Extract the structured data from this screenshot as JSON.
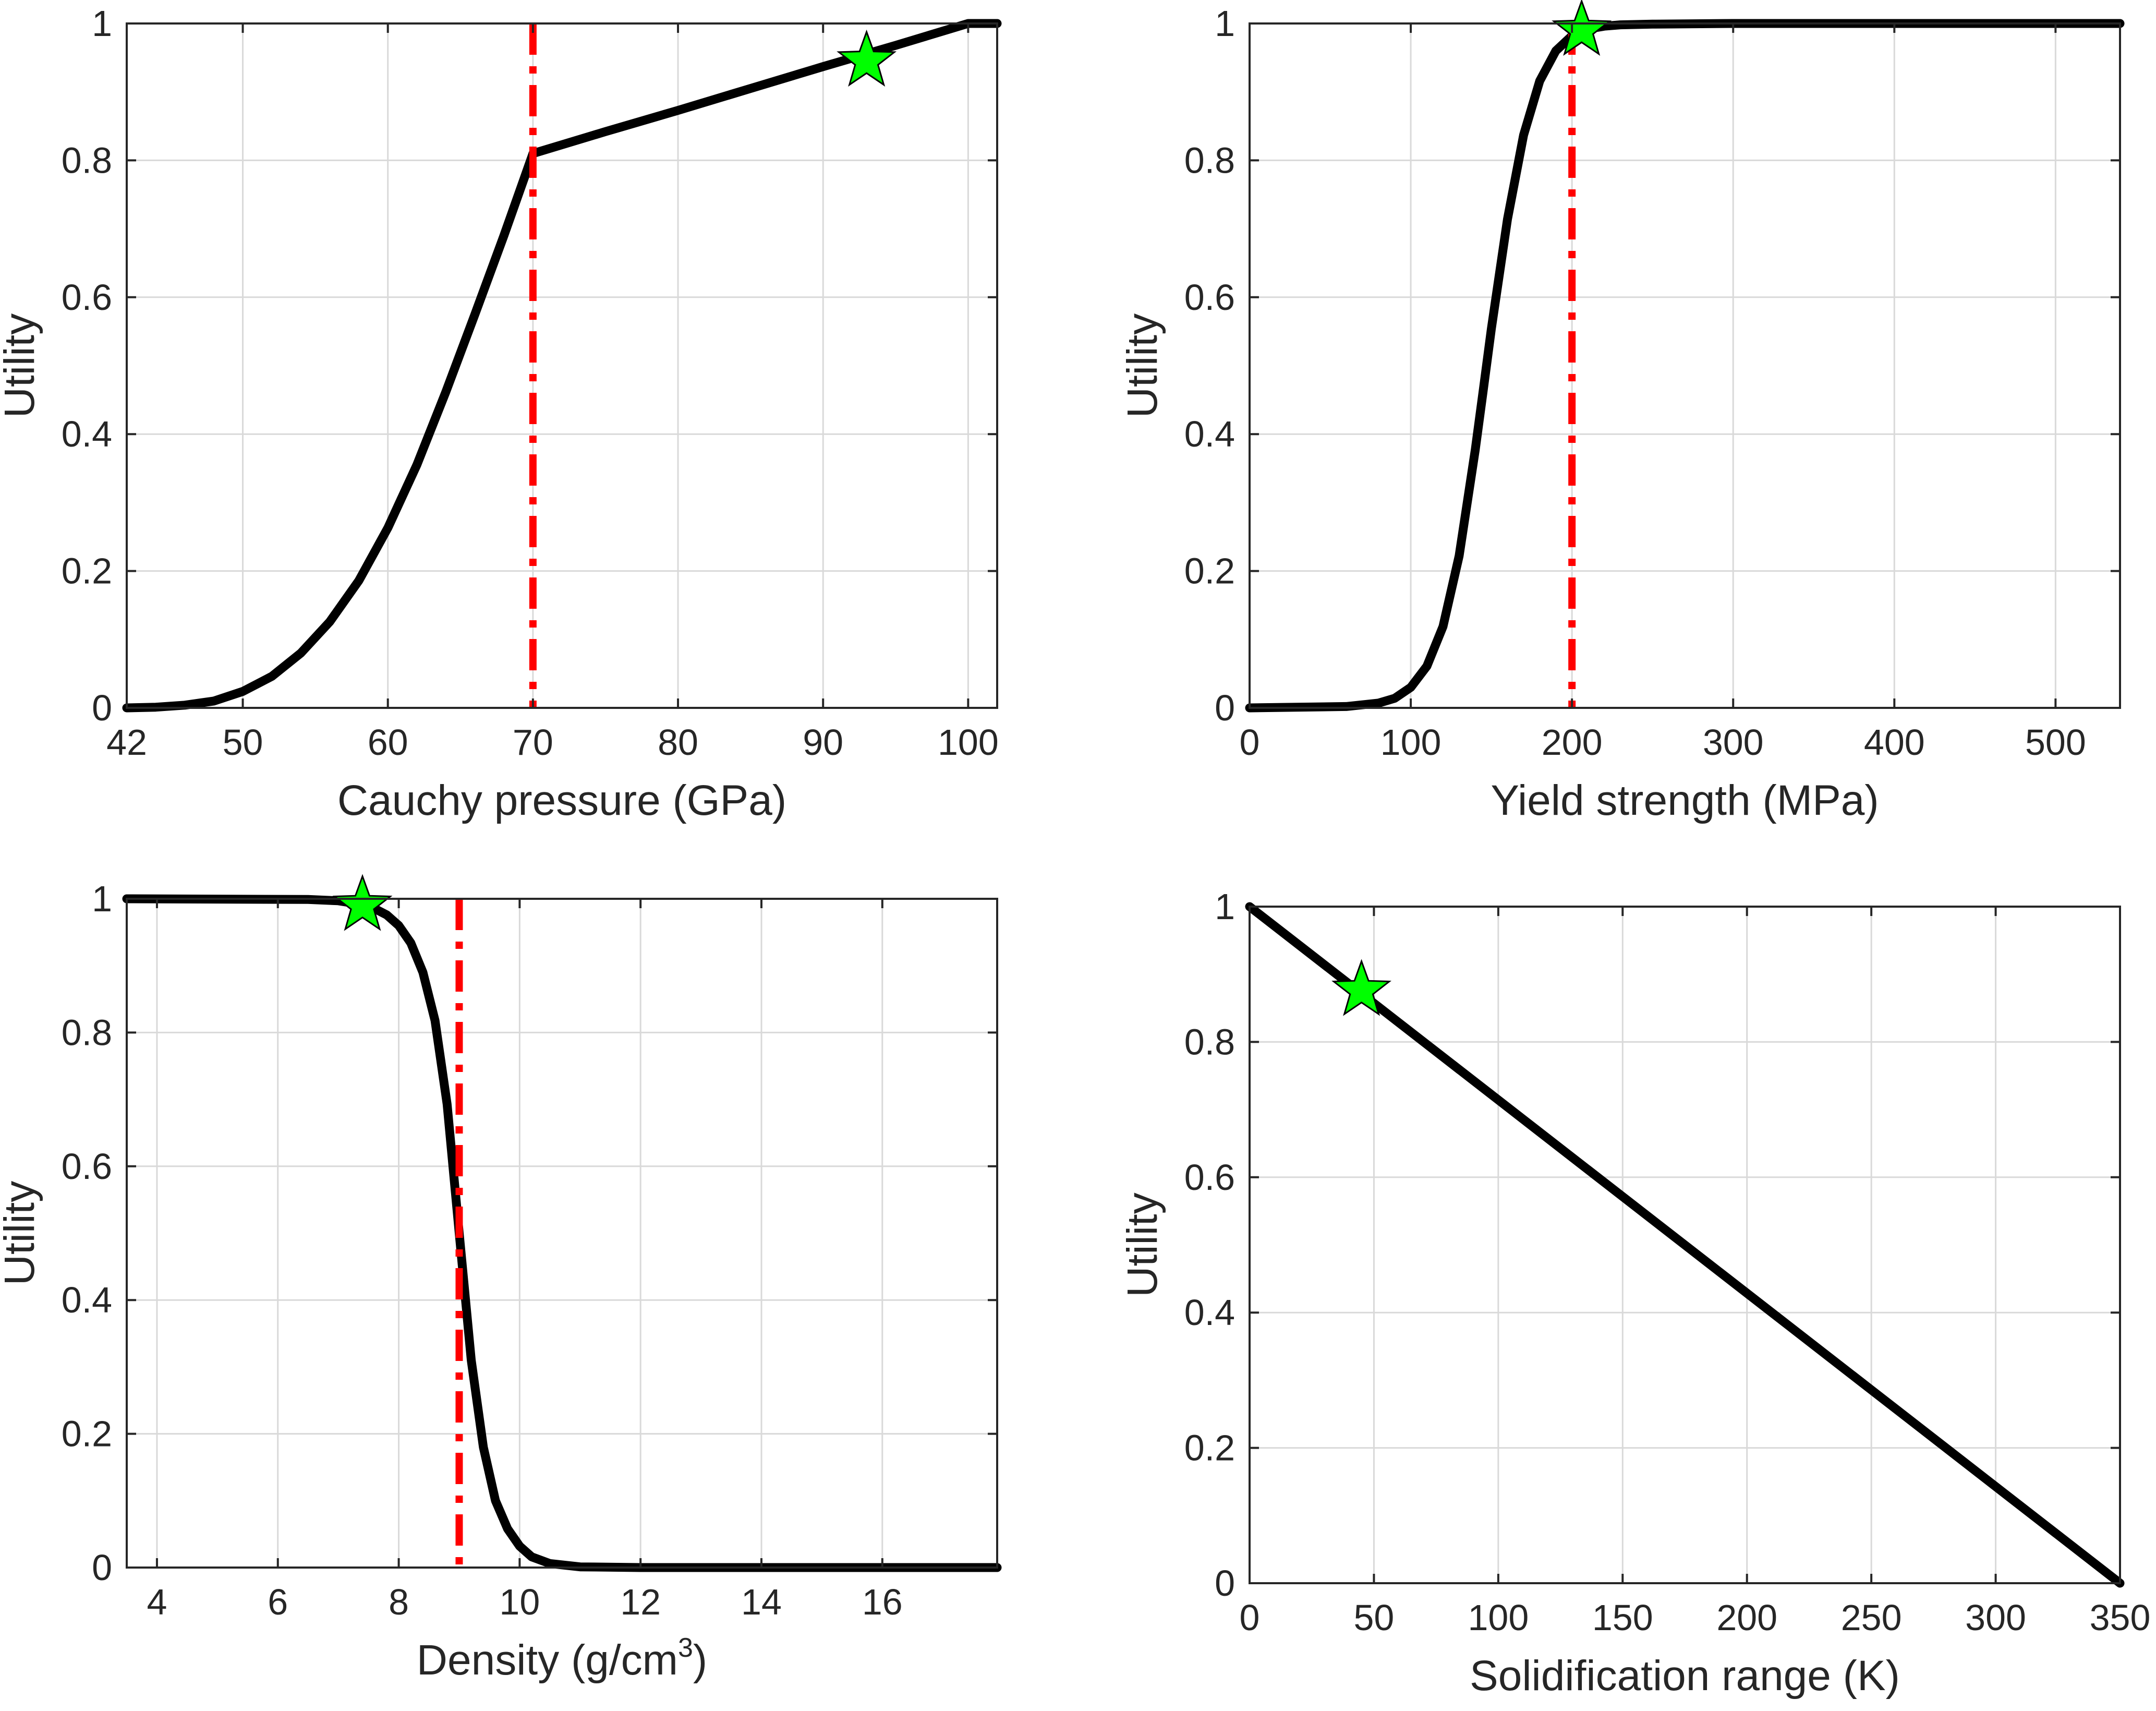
{
  "chart_data": [
    {
      "type": "line",
      "id": "cauchy",
      "xlabel": "Cauchy pressure (GPa)",
      "xlabel_sup": "",
      "xlabel_tail": "",
      "ylabel": "Utility",
      "xlim": [
        42,
        102
      ],
      "ylim": [
        0,
        1
      ],
      "xticks": [
        42,
        50,
        60,
        70,
        80,
        90,
        100
      ],
      "yticks": [
        0,
        0.2,
        0.4,
        0.6,
        0.8,
        1
      ],
      "xtick_labels": [
        "42",
        "50",
        "60",
        "70",
        "80",
        "90",
        "100"
      ],
      "ytick_labels": [
        "0",
        "0.2",
        "0.4",
        "0.6",
        "0.8",
        "1"
      ],
      "grid": true,
      "series": [
        {
          "name": "utility",
          "color": "#000000",
          "x": [
            42,
            44,
            46,
            48,
            50,
            52,
            54,
            56,
            58,
            60,
            62,
            64,
            66,
            68,
            70,
            70.001,
            75,
            80,
            85,
            90,
            95,
            100,
            102
          ],
          "y": [
            0.0,
            0.001,
            0.004,
            0.01,
            0.024,
            0.046,
            0.08,
            0.126,
            0.186,
            0.263,
            0.355,
            0.462,
            0.575,
            0.69,
            0.81,
            0.81,
            0.842,
            0.873,
            0.905,
            0.937,
            0.968,
            1.0,
            1.0
          ]
        }
      ],
      "threshold": {
        "x": 70,
        "color": "#ff0000",
        "style": "dash-dot"
      },
      "marker": {
        "x": 93,
        "y": 0.945,
        "shape": "star",
        "color": "#00ff00"
      }
    },
    {
      "type": "line",
      "id": "yield",
      "xlabel": "Yield strength (MPa)",
      "xlabel_sup": "",
      "xlabel_tail": "",
      "ylabel": "Utility",
      "xlim": [
        0,
        540
      ],
      "ylim": [
        0,
        1
      ],
      "xticks": [
        0,
        100,
        200,
        300,
        400,
        500
      ],
      "yticks": [
        0,
        0.2,
        0.4,
        0.6,
        0.8,
        1
      ],
      "xtick_labels": [
        "0",
        "100",
        "200",
        "300",
        "400",
        "500"
      ],
      "ytick_labels": [
        "0",
        "0.2",
        "0.4",
        "0.6",
        "0.8",
        "1"
      ],
      "grid": true,
      "series": [
        {
          "name": "utility",
          "color": "#000000",
          "x": [
            0,
            60,
            80,
            90,
            100,
            110,
            120,
            130,
            140,
            145,
            150,
            160,
            170,
            180,
            190,
            200,
            210,
            220,
            230,
            250,
            300,
            540
          ],
          "y": [
            0.0,
            0.002,
            0.007,
            0.014,
            0.03,
            0.061,
            0.119,
            0.222,
            0.377,
            0.465,
            0.554,
            0.714,
            0.837,
            0.916,
            0.96,
            0.982,
            0.992,
            0.996,
            0.998,
            0.999,
            1.0,
            1.0
          ]
        }
      ],
      "threshold": {
        "x": 200,
        "color": "#ff0000",
        "style": "dash-dot"
      },
      "marker": {
        "x": 206,
        "y": 0.99,
        "shape": "star",
        "color": "#00ff00"
      }
    },
    {
      "type": "line",
      "id": "density",
      "xlabel": "Density (g/cm",
      "xlabel_sup": "3",
      "xlabel_tail": ")",
      "ylabel": "Utility",
      "xlim": [
        3.5,
        17.9
      ],
      "ylim": [
        0,
        1
      ],
      "xticks": [
        4,
        6,
        8,
        10,
        12,
        14,
        16
      ],
      "yticks": [
        0,
        0.2,
        0.4,
        0.6,
        0.8,
        1
      ],
      "xtick_labels": [
        "4",
        "6",
        "8",
        "10",
        "12",
        "14",
        "16"
      ],
      "ytick_labels": [
        "0",
        "0.2",
        "0.4",
        "0.6",
        "0.8",
        "1"
      ],
      "grid": true,
      "series": [
        {
          "name": "utility",
          "color": "#000000",
          "x": [
            3.5,
            6.5,
            7.0,
            7.5,
            7.8,
            8.0,
            8.2,
            8.4,
            8.6,
            8.8,
            9.0,
            9.2,
            9.4,
            9.6,
            9.8,
            10.0,
            10.2,
            10.5,
            11.0,
            12.0,
            17.9
          ],
          "y": [
            1.0,
            0.999,
            0.997,
            0.99,
            0.976,
            0.96,
            0.934,
            0.89,
            0.818,
            0.693,
            0.5,
            0.31,
            0.18,
            0.1,
            0.058,
            0.032,
            0.016,
            0.006,
            0.001,
            0.0,
            0.0
          ]
        }
      ],
      "threshold": {
        "x": 9,
        "color": "#ff0000",
        "style": "dash-dot"
      },
      "marker": {
        "x": 7.4,
        "y": 0.99,
        "shape": "star",
        "color": "#00ff00"
      }
    },
    {
      "type": "line",
      "id": "solidification",
      "xlabel": "Solidification range (K)",
      "xlabel_sup": "",
      "xlabel_tail": "",
      "ylabel": "Utility",
      "xlim": [
        0,
        350
      ],
      "ylim": [
        0,
        1
      ],
      "xticks": [
        0,
        50,
        100,
        150,
        200,
        250,
        300,
        350
      ],
      "yticks": [
        0,
        0.2,
        0.4,
        0.6,
        0.8,
        1
      ],
      "xtick_labels": [
        "0",
        "50",
        "100",
        "150",
        "200",
        "250",
        "300",
        "350"
      ],
      "ytick_labels": [
        "0",
        "0.2",
        "0.4",
        "0.6",
        "0.8",
        "1"
      ],
      "grid": true,
      "series": [
        {
          "name": "utility",
          "color": "#000000",
          "x": [
            0,
            350
          ],
          "y": [
            1.0,
            0.0
          ]
        }
      ],
      "marker": {
        "x": 45,
        "y": 0.876,
        "shape": "star",
        "color": "#00ff00"
      }
    }
  ]
}
